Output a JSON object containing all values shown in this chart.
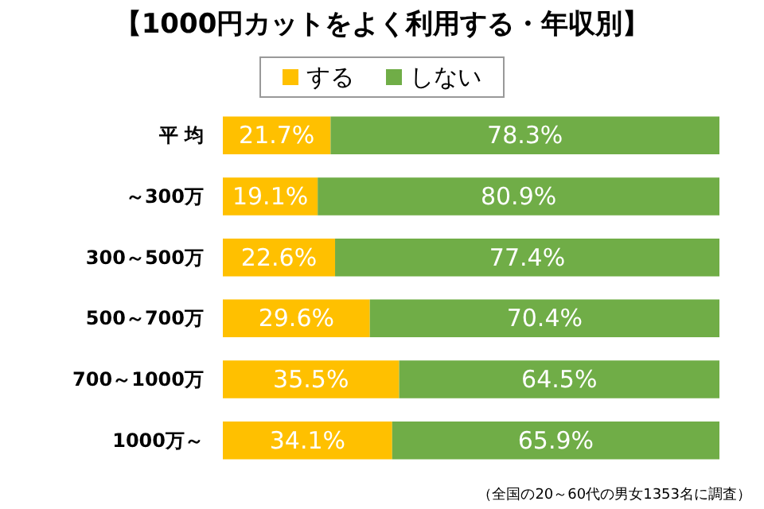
{
  "chart_data": {
    "type": "bar",
    "orientation": "horizontal",
    "stacked": true,
    "title": "【1000円カットをよく利用する・年収別】",
    "categories": [
      "平 均",
      "～300万",
      "300～500万",
      "500～700万",
      "700～1000万",
      "1000万～"
    ],
    "series": [
      {
        "name": "する",
        "color": "#ffc000",
        "values": [
          21.7,
          19.1,
          22.6,
          29.6,
          35.5,
          34.1
        ],
        "value_labels": [
          "21.7%",
          "19.1%",
          "22.6%",
          "29.6%",
          "35.5%",
          "34.1%"
        ]
      },
      {
        "name": "しない",
        "color": "#70ad47",
        "values": [
          78.3,
          80.9,
          77.4,
          70.4,
          64.5,
          65.9
        ],
        "value_labels": [
          "78.3%",
          "80.9%",
          "77.4%",
          "70.4%",
          "64.5%",
          "65.9%"
        ]
      }
    ],
    "xlim": [
      0,
      100
    ],
    "tick_labels": "y",
    "legend": "top",
    "annotations": [
      "（全国の20～60代の男女1353名に調査）"
    ]
  }
}
